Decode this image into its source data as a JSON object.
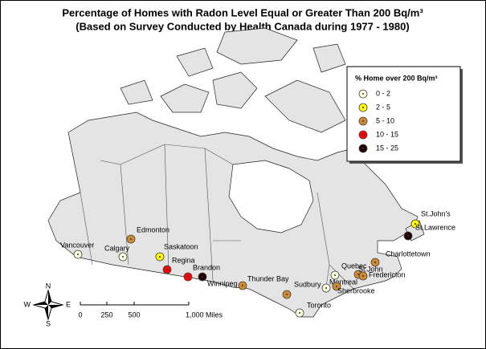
{
  "title": [
    "Percentage of Homes with Radon Level Equal or Greater Than 200 Bq/m³",
    "(Based on Survey Conducted by Health Canada during 1977 - 1980)"
  ],
  "legend": {
    "title": "% Home over 200 Bq/m³",
    "items": [
      {
        "label": "0 - 2",
        "color": "#ffffe0"
      },
      {
        "label": "2 - 5",
        "color": "#ffff00"
      },
      {
        "label": "5 - 10",
        "color": "#d08a30"
      },
      {
        "label": "10 - 15",
        "color": "#ff0000"
      },
      {
        "label": "15 - 25",
        "color": "#200000"
      }
    ]
  },
  "cities": [
    {
      "name": "Vancouver",
      "class": 0
    },
    {
      "name": "Calgary",
      "class": 0
    },
    {
      "name": "Edmonton",
      "class": 2
    },
    {
      "name": "Saskatoon",
      "class": 1
    },
    {
      "name": "Regina",
      "class": 3
    },
    {
      "name": "Brandon",
      "class": 3
    },
    {
      "name": "Winnipeg",
      "class": 4
    },
    {
      "name": "Thunder Bay",
      "class": 2
    },
    {
      "name": "Sudbury",
      "class": 2
    },
    {
      "name": "Toronto",
      "class": 0
    },
    {
      "name": "Montreal",
      "class": 0
    },
    {
      "name": "Sherbrooke",
      "class": 2
    },
    {
      "name": "Quebec",
      "class": 0
    },
    {
      "name": "St.John",
      "class": 2
    },
    {
      "name": "Fredericton",
      "class": 2
    },
    {
      "name": "Charlottetown",
      "class": 2
    },
    {
      "name": "St.John's",
      "class": 1
    },
    {
      "name": "St.Lawrence",
      "class": 4
    }
  ],
  "scale": [
    "0",
    "250",
    "500",
    "1,000 Miles"
  ],
  "compass": {
    "n": "N",
    "s": "S",
    "e": "E",
    "w": "W"
  }
}
